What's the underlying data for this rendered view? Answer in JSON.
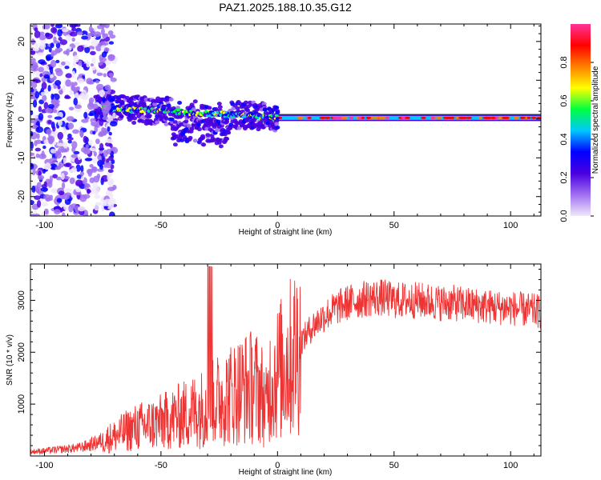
{
  "title": "PAZ1.2025.188.10.35.G12",
  "chart_data": [
    {
      "type": "heatmap",
      "xlabel": "Height of straight line (km)",
      "ylabel": "Frequency (Hz)",
      "xlim": [
        -106,
        113
      ],
      "ylim": [
        -25,
        24.5
      ],
      "xticks": [
        -100,
        -50,
        0,
        50,
        100
      ],
      "yticks": [
        -20,
        -10,
        0,
        10,
        20
      ],
      "colorbar": {
        "label": "Normalized spectral amplitude",
        "ticks": [
          0.0,
          0.2,
          0.4,
          0.6,
          0.8
        ],
        "range": [
          0,
          1
        ],
        "colormap": [
          "#f0e8fa",
          "#a070f0",
          "#4a00e0",
          "#0000ff",
          "#00c8ff",
          "#00ff40",
          "#ffff00",
          "#ff8000",
          "#ff0000",
          "#ff3399"
        ]
      },
      "features": [
        {
          "name": "dominant-tone",
          "x_range": [
            0,
            113
          ],
          "frequency_hz": 0.3,
          "amplitude": 1.0
        },
        {
          "name": "transition",
          "x_range": [
            -78,
            0
          ],
          "frequency_hz": [
            3,
            0.5
          ],
          "amplitude": 0.5
        },
        {
          "name": "noise-region",
          "x_range": [
            -106,
            -70
          ],
          "frequency_hz": [
            -25,
            24.5
          ],
          "amplitude": 0.15
        }
      ]
    },
    {
      "type": "line",
      "xlabel": "Height of straight line (km)",
      "ylabel": "SNR (10 * v/v)",
      "xlim": [
        -106,
        113
      ],
      "ylim": [
        0,
        3700
      ],
      "xticks": [
        -100,
        -50,
        0,
        50,
        100
      ],
      "yticks": [
        1000,
        2000,
        3000
      ],
      "color": "#ee3333",
      "series": [
        {
          "x": [
            -106,
            -100,
            -95,
            -90,
            -85,
            -80,
            -75,
            -70,
            -65,
            -60,
            -55,
            -50,
            -45,
            -40,
            -35,
            -30,
            -28,
            -25,
            -20,
            -15,
            -10,
            -7,
            -5,
            -3,
            0,
            5,
            10,
            15,
            20,
            25,
            30,
            35,
            40,
            45,
            50,
            55,
            60,
            65,
            70,
            75,
            80,
            85,
            90,
            95,
            100,
            105,
            110,
            113
          ],
          "y": [
            80,
            100,
            120,
            140,
            160,
            220,
            300,
            380,
            480,
            560,
            600,
            650,
            720,
            800,
            880,
            950,
            1000,
            1100,
            1200,
            1300,
            1350,
            1250,
            900,
            1450,
            1600,
            1850,
            2200,
            2500,
            2700,
            2850,
            2950,
            3000,
            3050,
            3050,
            3000,
            3000,
            3000,
            2980,
            2950,
            2950,
            2920,
            2900,
            2880,
            2860,
            2850,
            2820,
            2800,
            2780
          ]
        }
      ]
    }
  ]
}
